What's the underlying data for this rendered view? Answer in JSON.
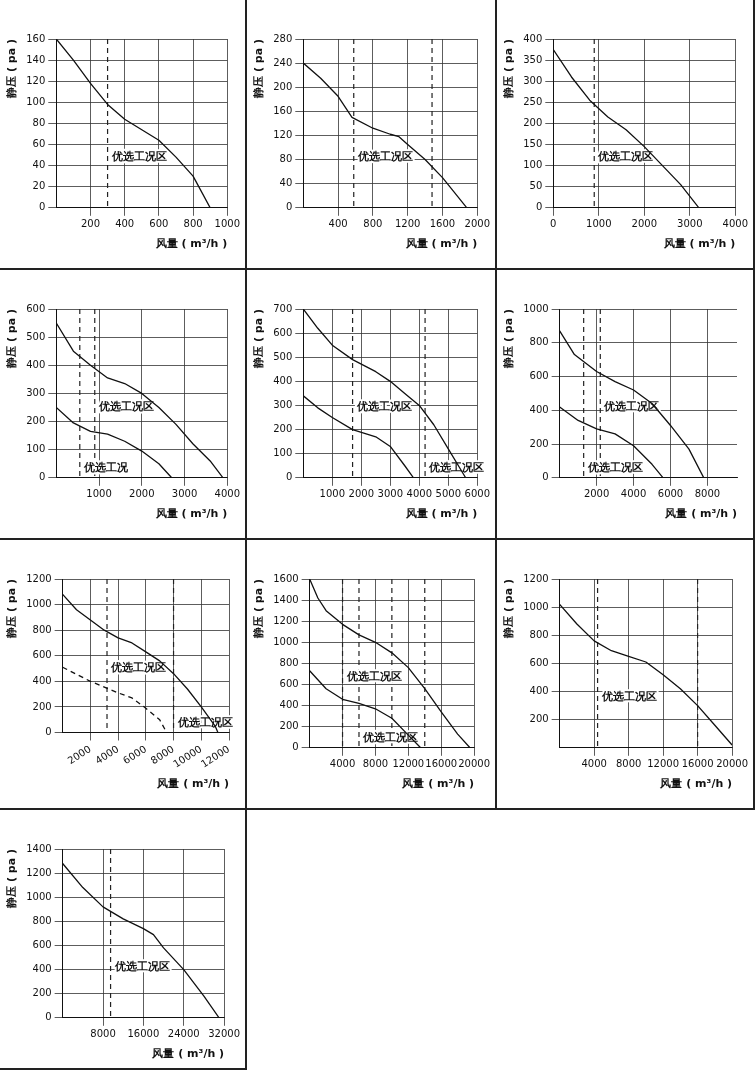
{
  "chart_data": [
    {
      "type": "line",
      "xlabel": "风量 ( m³/h )",
      "ylabel": "静压 ( pa )",
      "grid": true,
      "marker": "none",
      "xlim": [
        0,
        1000
      ],
      "xticks": [
        200,
        400,
        600,
        800,
        1000
      ],
      "ylim": [
        0,
        160
      ],
      "yticks": [
        0,
        20,
        40,
        60,
        80,
        100,
        120,
        140,
        160
      ],
      "series": [
        {
          "color": "#111111",
          "x": [
            0,
            100,
            200,
            300,
            400,
            500,
            600,
            700,
            800,
            900
          ],
          "values": [
            160,
            140,
            118,
            98,
            84,
            74,
            64,
            48,
            30,
            0
          ]
        }
      ],
      "ref_lines": [
        {
          "axis": "x",
          "value": 300,
          "line_style": "dashed"
        }
      ],
      "annotations": [
        "优选工况区"
      ]
    },
    {
      "type": "line",
      "xlabel": "风量 ( m³/h )",
      "ylabel": "静压 ( pa )",
      "grid": true,
      "marker": "none",
      "xlim": [
        0,
        2000
      ],
      "xticks": [
        400,
        800,
        1200,
        1600,
        2000
      ],
      "ylim": [
        0,
        280
      ],
      "yticks": [
        0,
        40,
        80,
        120,
        160,
        200,
        240,
        280
      ],
      "series": [
        {
          "color": "#111111",
          "x": [
            0,
            200,
            400,
            560,
            800,
            1000,
            1100,
            1200,
            1400,
            1600,
            1880
          ],
          "values": [
            240,
            215,
            185,
            150,
            132,
            122,
            118,
            105,
            80,
            50,
            0
          ]
        }
      ],
      "ref_lines": [
        {
          "axis": "x",
          "value": 580,
          "line_style": "dashed"
        },
        {
          "axis": "x",
          "value": 1480,
          "line_style": "dashed"
        }
      ],
      "annotations": [
        "优选工况区"
      ]
    },
    {
      "type": "line",
      "xlabel": "风量 ( m³/h )",
      "ylabel": "静压 ( pa )",
      "grid": true,
      "marker": "none",
      "xlim": [
        0,
        4000
      ],
      "xticks": [
        0,
        1000,
        2000,
        3000,
        4000
      ],
      "ylim": [
        0,
        400
      ],
      "yticks": [
        0,
        50,
        100,
        150,
        200,
        250,
        300,
        350,
        400
      ],
      "series": [
        {
          "color": "#111111",
          "x": [
            0,
            400,
            800,
            1200,
            1600,
            2000,
            2400,
            2800,
            3200
          ],
          "values": [
            375,
            310,
            255,
            215,
            185,
            145,
            100,
            55,
            0
          ]
        }
      ],
      "ref_lines": [
        {
          "axis": "x",
          "value": 900,
          "line_style": "dashed"
        }
      ],
      "annotations": [
        "优选工况区"
      ]
    },
    {
      "type": "line",
      "xlabel": "风量 ( m³/h )",
      "ylabel": "静压 ( pa )",
      "grid": true,
      "marker": "none",
      "xlim": [
        0,
        4000
      ],
      "xticks": [
        1000,
        2000,
        3000,
        4000
      ],
      "ylim": [
        0,
        600
      ],
      "yticks": [
        0,
        100,
        200,
        300,
        400,
        500,
        600
      ],
      "series": [
        {
          "color": "#111111",
          "x": [
            0,
            400,
            800,
            1200,
            1600,
            2000,
            2400,
            2800,
            3200,
            3600,
            3900
          ],
          "values": [
            550,
            450,
            400,
            355,
            335,
            300,
            250,
            190,
            120,
            60,
            0
          ]
        },
        {
          "color": "#111111",
          "x": [
            0,
            400,
            800,
            1200,
            1600,
            2000,
            2400,
            2700
          ],
          "values": [
            250,
            195,
            165,
            155,
            130,
            95,
            50,
            0
          ]
        }
      ],
      "ref_lines": [
        {
          "axis": "x",
          "value": 900,
          "line_style": "dashed"
        },
        {
          "axis": "x",
          "value": 550,
          "line_style": "dashed"
        }
      ],
      "annotations": [
        "优选工况区",
        "优选工况"
      ]
    },
    {
      "type": "line",
      "xlabel": "风量 ( m³/h )",
      "ylabel": "静压 ( pa )",
      "grid": true,
      "marker": "none",
      "xlim": [
        0,
        6000
      ],
      "xticks": [
        1000,
        2000,
        3000,
        4000,
        5000,
        6000
      ],
      "ylim": [
        0,
        700
      ],
      "yticks": [
        0,
        100,
        200,
        300,
        400,
        500,
        600,
        700
      ],
      "series": [
        {
          "color": "#111111",
          "x": [
            0,
            500,
            1000,
            1700,
            2500,
            3000,
            3500,
            4000,
            4500,
            5000,
            5500,
            5600
          ],
          "values": [
            700,
            620,
            550,
            490,
            440,
            400,
            350,
            300,
            220,
            120,
            20,
            0
          ]
        },
        {
          "color": "#111111",
          "x": [
            0,
            500,
            1000,
            1700,
            2500,
            3000,
            3500,
            3800
          ],
          "values": [
            340,
            290,
            250,
            200,
            170,
            130,
            50,
            0
          ]
        }
      ],
      "ref_lines": [
        {
          "axis": "x",
          "value": 1700,
          "line_style": "dashed"
        },
        {
          "axis": "x",
          "value": 4200,
          "line_style": "dashed"
        }
      ],
      "annotations": [
        "优选工况区",
        "优选工况区"
      ]
    },
    {
      "type": "line",
      "xlabel": "风量 ( m³/h )",
      "ylabel": "静压 ( pa )",
      "grid": true,
      "marker": "none",
      "xlim": [
        0,
        9600
      ],
      "xticks": [
        2000,
        4000,
        6000,
        8000
      ],
      "ylim": [
        0,
        1000
      ],
      "yticks": [
        0,
        200,
        400,
        600,
        800,
        1000
      ],
      "series": [
        {
          "color": "#111111",
          "x": [
            0,
            800,
            2000,
            3000,
            4000,
            5000,
            6000,
            7000,
            7800
          ],
          "values": [
            870,
            730,
            630,
            570,
            520,
            440,
            310,
            170,
            0
          ]
        },
        {
          "color": "#111111",
          "x": [
            0,
            1000,
            2000,
            3000,
            4000,
            5000,
            5600
          ],
          "values": [
            420,
            340,
            290,
            260,
            190,
            80,
            0
          ]
        }
      ],
      "ref_lines": [
        {
          "axis": "x",
          "value": 2200,
          "line_style": "dashed"
        },
        {
          "axis": "x",
          "value": 1300,
          "line_style": "dashed"
        }
      ],
      "annotations": [
        "优选工况区",
        "优选工况区"
      ]
    },
    {
      "type": "line",
      "xlabel": "风量 ( m³/h )",
      "ylabel": "静压 ( pa )",
      "grid": true,
      "marker": "none",
      "xlim": [
        0,
        12000
      ],
      "xticks": [
        2000,
        4000,
        6000,
        8000,
        10000,
        12000
      ],
      "ylim": [
        0,
        1200
      ],
      "yticks": [
        0,
        200,
        400,
        600,
        800,
        1000,
        1200
      ],
      "series": [
        {
          "color": "#111111",
          "x": [
            0,
            1000,
            2000,
            3000,
            4000,
            5000,
            6000,
            7000,
            8000,
            9000,
            10000,
            11000,
            11200
          ],
          "values": [
            1080,
            960,
            880,
            800,
            740,
            700,
            630,
            560,
            460,
            340,
            200,
            50,
            0
          ]
        },
        {
          "color": "#111111",
          "line_style": "dashed",
          "x": [
            0,
            2000,
            4000,
            5000,
            6000,
            7000,
            7500
          ],
          "values": [
            510,
            400,
            310,
            270,
            190,
            100,
            0
          ]
        }
      ],
      "ref_lines": [
        {
          "axis": "x",
          "value": 3200,
          "line_style": "dashed"
        },
        {
          "axis": "x",
          "value": 8000,
          "line_style": "dashed"
        }
      ],
      "annotations": [
        "优选工况区",
        "优选工况区"
      ]
    },
    {
      "type": "line",
      "xlabel": "风量 ( m³/h )",
      "ylabel": "静压 ( pa )",
      "grid": true,
      "marker": "none",
      "xlim": [
        0,
        20000
      ],
      "xticks": [
        4000,
        8000,
        12000,
        16000,
        20000
      ],
      "ylim": [
        0,
        1600
      ],
      "yticks": [
        0,
        200,
        400,
        600,
        800,
        1000,
        1200,
        1400,
        1600
      ],
      "series": [
        {
          "color": "#111111",
          "x": [
            0,
            1000,
            2000,
            4000,
            6000,
            8000,
            10000,
            12000,
            14000,
            16000,
            18000,
            19500
          ],
          "values": [
            1600,
            1420,
            1300,
            1170,
            1070,
            1000,
            900,
            760,
            560,
            340,
            130,
            0
          ]
        },
        {
          "color": "#111111",
          "x": [
            0,
            2000,
            4000,
            6000,
            8000,
            10000,
            12000,
            13500
          ],
          "values": [
            730,
            560,
            460,
            420,
            370,
            280,
            120,
            0
          ]
        }
      ],
      "ref_lines": [
        {
          "axis": "x",
          "value": 4000,
          "line_style": "dashed"
        },
        {
          "axis": "x",
          "value": 6000,
          "line_style": "dashed"
        },
        {
          "axis": "x",
          "value": 10000,
          "line_style": "dashed"
        },
        {
          "axis": "x",
          "value": 14000,
          "line_style": "dashed"
        }
      ],
      "annotations": [
        "优选工况区",
        "优选工况区"
      ]
    },
    {
      "type": "line",
      "xlabel": "风量 ( m³/h )",
      "ylabel": "静压 ( pa )",
      "grid": true,
      "marker": "none",
      "xlim": [
        0,
        20000
      ],
      "xticks": [
        4000,
        8000,
        12000,
        16000,
        20000
      ],
      "ylim": [
        0,
        1200
      ],
      "yticks": [
        200,
        400,
        600,
        800,
        1000,
        1200
      ],
      "series": [
        {
          "color": "#111111",
          "x": [
            0,
            2000,
            4000,
            6000,
            8000,
            10000,
            12000,
            14000,
            16000,
            18000,
            20000
          ],
          "values": [
            1020,
            880,
            760,
            690,
            650,
            610,
            520,
            420,
            300,
            160,
            20
          ]
        }
      ],
      "ref_lines": [
        {
          "axis": "x",
          "value": 4400,
          "line_style": "dashed"
        },
        {
          "axis": "x",
          "value": 16000,
          "line_style": "dashed"
        }
      ],
      "annotations": [
        "优选工况区"
      ]
    },
    {
      "type": "line",
      "xlabel": "风量 ( m³/h )",
      "ylabel": "静压 ( pa )",
      "grid": true,
      "marker": "none",
      "xlim": [
        0,
        32000
      ],
      "xticks": [
        8000,
        16000,
        24000,
        32000
      ],
      "ylim": [
        0,
        1400
      ],
      "yticks": [
        0,
        200,
        400,
        600,
        800,
        1000,
        1200,
        1400
      ],
      "series": [
        {
          "color": "#111111",
          "x": [
            0,
            4000,
            8000,
            12000,
            16000,
            18000,
            20000,
            24000,
            28000,
            31000
          ],
          "values": [
            1280,
            1080,
            920,
            820,
            740,
            690,
            580,
            400,
            180,
            0
          ]
        }
      ],
      "ref_lines": [
        {
          "axis": "x",
          "value": 9500,
          "line_style": "dashed"
        }
      ],
      "annotations": [
        "优选工况区"
      ]
    }
  ]
}
